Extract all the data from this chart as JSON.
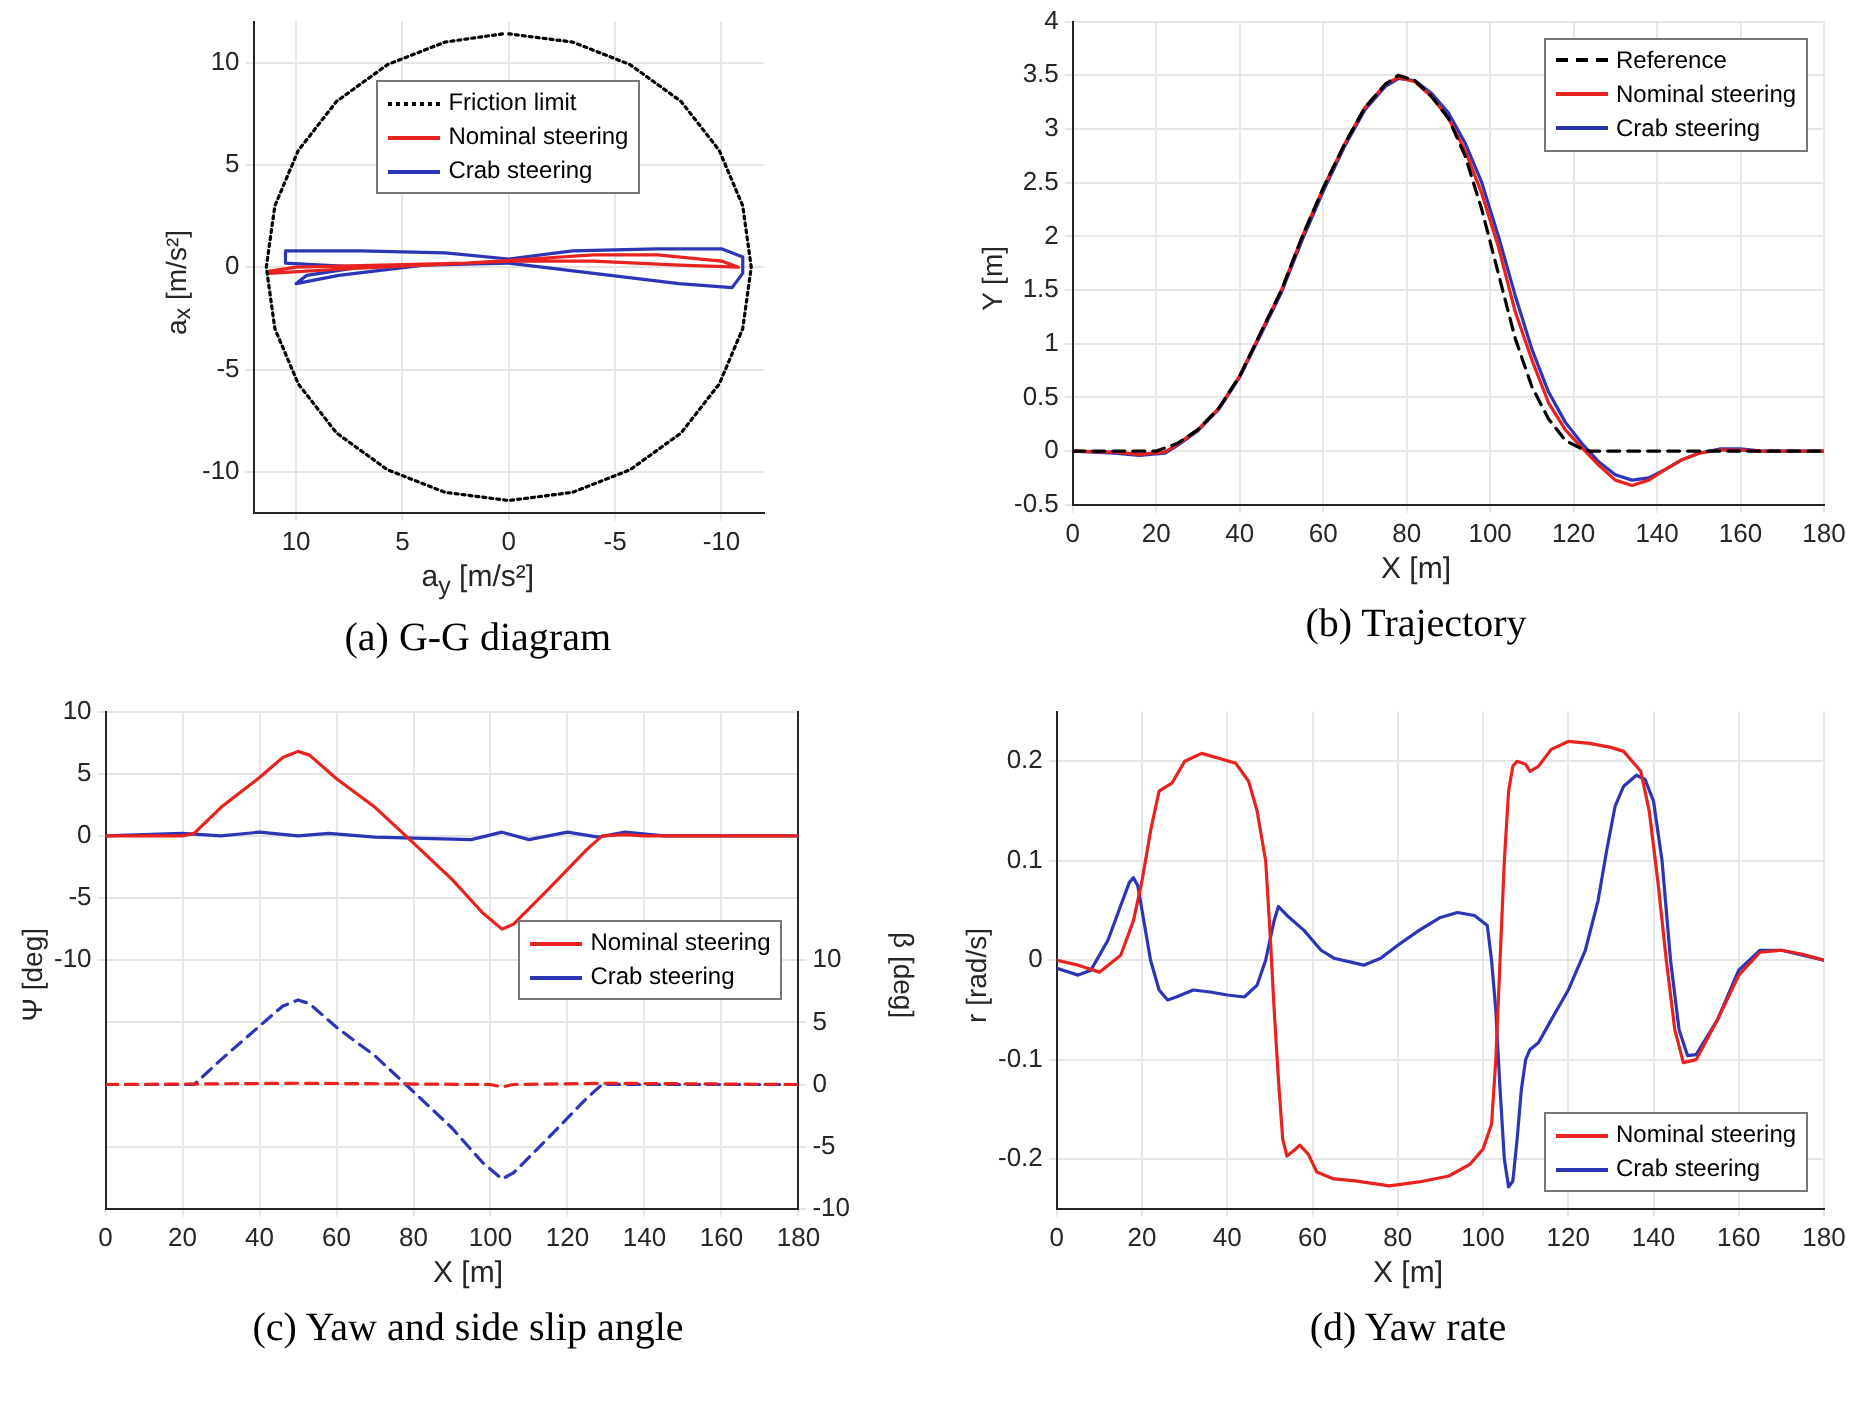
{
  "chart_data": [
    {
      "type": "line",
      "title": "(a) G-G diagram",
      "xlabel": "a$_{y}$ [m/s²]",
      "ylabel": "a$_{x}$ [m/s²]",
      "xlim": [
        12,
        -12
      ],
      "xticks": [
        10,
        5,
        0,
        -5,
        -10
      ],
      "ylim": [
        -12,
        12
      ],
      "yticks": [
        -10,
        -5,
        0,
        5,
        10
      ],
      "grid": true,
      "legend": "top",
      "marker": "none",
      "series": [
        {
          "name": "Friction limit",
          "color": "#000000",
          "line_style": "dotted",
          "x": [
            0.3,
            3,
            5.7,
            8.1,
            9.9,
            11,
            11.4,
            11,
            9.9,
            8.1,
            5.7,
            3,
            0,
            -3,
            -5.7,
            -8.1,
            -9.9,
            -11,
            -11.4,
            -11,
            -9.9,
            -8.1,
            -5.7,
            -3,
            0
          ],
          "values": [
            11.4,
            11,
            9.9,
            8.1,
            5.7,
            3,
            0,
            -3,
            -5.7,
            -8.1,
            -9.9,
            -11,
            -11.4,
            -11,
            -9.9,
            -8.1,
            -5.7,
            -3,
            0,
            3,
            5.7,
            8.1,
            9.9,
            11,
            11.4
          ]
        },
        {
          "name": "Nominal steering",
          "color": "#e8221e",
          "line_style": "solid",
          "x": [
            11.3,
            8,
            4,
            0,
            -4,
            -8,
            -10.8,
            -10,
            -7,
            -4,
            -1,
            2,
            6,
            10,
            11.3
          ],
          "values": [
            -0.3,
            -0.1,
            0.1,
            0.3,
            0.3,
            0.1,
            0,
            0.3,
            0.6,
            0.6,
            0.4,
            0.2,
            0.1,
            0,
            -0.2
          ]
        },
        {
          "name": "Crab steering",
          "color": "#2b35b5",
          "line_style": "solid",
          "x": [
            10.5,
            7,
            3,
            0,
            -3,
            -7,
            -10,
            -11,
            -11,
            -10.5,
            -8,
            -4,
            0,
            4,
            8,
            10,
            9.5,
            7,
            10.5,
            10.5
          ],
          "values": [
            0.8,
            0.8,
            0.7,
            0.4,
            0.8,
            0.9,
            0.9,
            0.5,
            -0.3,
            -1,
            -0.8,
            -0.3,
            0.2,
            0.1,
            -0.4,
            -0.8,
            -0.4,
            0,
            0.2,
            0.7
          ]
        }
      ]
    },
    {
      "type": "line",
      "title": "(b) Trajectory",
      "xlabel": "X [m]",
      "ylabel": "Y [m]",
      "xlim": [
        0,
        180
      ],
      "xticks": [
        0,
        20,
        40,
        60,
        80,
        100,
        120,
        140,
        160,
        180
      ],
      "ylim": [
        -0.5,
        4
      ],
      "yticks": [
        -0.5,
        0,
        0.5,
        1,
        1.5,
        2,
        2.5,
        3,
        3.5,
        4
      ],
      "grid": true,
      "legend": "top right",
      "marker": "none",
      "series": [
        {
          "name": "Reference",
          "color": "#000000",
          "line_style": "dashed",
          "x": [
            0,
            20,
            25,
            30,
            35,
            40,
            45,
            50,
            55,
            60,
            65,
            70,
            75,
            78,
            82,
            86,
            90,
            94,
            98,
            102,
            106,
            110,
            114,
            118,
            122,
            124,
            180
          ],
          "values": [
            0,
            0,
            0.07,
            0.2,
            0.4,
            0.7,
            1.1,
            1.5,
            2,
            2.45,
            2.85,
            3.2,
            3.42,
            3.5,
            3.45,
            3.3,
            3.1,
            2.75,
            2.25,
            1.65,
            1.05,
            0.6,
            0.3,
            0.1,
            0.02,
            0,
            0
          ]
        },
        {
          "name": "Nominal steering",
          "color": "#e8221e",
          "line_style": "solid",
          "x": [
            0,
            10,
            16,
            22,
            25,
            30,
            35,
            40,
            45,
            50,
            55,
            60,
            65,
            70,
            75,
            78,
            82,
            86,
            90,
            94,
            98,
            102,
            106,
            110,
            114,
            118,
            122,
            126,
            130,
            134,
            138,
            142,
            146,
            150,
            155,
            160,
            165,
            180
          ],
          "values": [
            0,
            -0.01,
            -0.03,
            -0.01,
            0.06,
            0.2,
            0.4,
            0.7,
            1.1,
            1.5,
            2,
            2.45,
            2.85,
            3.2,
            3.42,
            3.48,
            3.44,
            3.3,
            3.1,
            2.8,
            2.4,
            1.9,
            1.3,
            0.85,
            0.45,
            0.2,
            0.03,
            -0.13,
            -0.27,
            -0.32,
            -0.27,
            -0.17,
            -0.08,
            -0.02,
            0.01,
            0.01,
            0,
            0
          ]
        },
        {
          "name": "Crab steering",
          "color": "#2b35b5",
          "line_style": "solid",
          "x": [
            0,
            10,
            16,
            22,
            25,
            30,
            35,
            40,
            45,
            50,
            55,
            60,
            65,
            70,
            75,
            78,
            82,
            86,
            90,
            94,
            98,
            102,
            106,
            110,
            114,
            118,
            122,
            126,
            130,
            134,
            138,
            142,
            146,
            150,
            155,
            160,
            165,
            180
          ],
          "values": [
            0,
            -0.02,
            -0.04,
            -0.02,
            0.05,
            0.19,
            0.39,
            0.69,
            1.08,
            1.48,
            1.97,
            2.42,
            2.83,
            3.18,
            3.4,
            3.47,
            3.45,
            3.33,
            3.15,
            2.87,
            2.5,
            2,
            1.45,
            0.95,
            0.55,
            0.27,
            0.07,
            -0.1,
            -0.22,
            -0.27,
            -0.25,
            -0.17,
            -0.08,
            -0.02,
            0.02,
            0.02,
            0,
            0
          ]
        }
      ]
    },
    {
      "type": "line",
      "title": "(c) Yaw and side slip angle",
      "xlabel": "X [m]",
      "ylabel": "Ψ [deg]",
      "y2label": "β [deg]",
      "xlim": [
        0,
        180
      ],
      "xticks": [
        0,
        20,
        40,
        60,
        80,
        100,
        120,
        140,
        160,
        180
      ],
      "ylim": [
        -30,
        10
      ],
      "yticks": [
        -10,
        -5,
        0,
        5,
        10
      ],
      "y2lim": [
        -10,
        30
      ],
      "y2ticks": [
        -10,
        -5,
        0,
        5,
        10
      ],
      "grid": true,
      "legend": "right",
      "marker": "none",
      "series": [
        {
          "name": "Nominal steering",
          "color": "#e8221e",
          "line_style": "solid",
          "x": [
            0,
            20,
            23,
            30,
            40,
            46,
            50,
            53,
            60,
            70,
            78,
            90,
            98,
            103,
            106,
            115,
            125,
            129,
            135,
            140,
            180
          ],
          "values": [
            0,
            0,
            0.2,
            2.3,
            4.7,
            6.3,
            6.8,
            6.5,
            4.6,
            2.3,
            0,
            -3.5,
            -6.2,
            -7.5,
            -7.1,
            -4.3,
            -1.1,
            0,
            0.1,
            0,
            0
          ]
        },
        {
          "name": "Crab steering",
          "color": "#2b35b5",
          "line_style": "solid",
          "x": [
            0,
            20,
            30,
            40,
            50,
            58,
            70,
            95,
            103,
            110,
            120,
            128,
            135,
            145,
            180
          ],
          "values": [
            0,
            0.2,
            0,
            0.3,
            0,
            0.2,
            -0.1,
            -0.3,
            0.3,
            -0.3,
            0.3,
            -0.1,
            0.3,
            0,
            0
          ]
        },
        {
          "color": "#e8221e",
          "line_style": "dashed",
          "axis": "y2",
          "x": [
            0,
            50,
            100,
            103,
            106,
            130,
            180
          ],
          "values": [
            0,
            0.1,
            0,
            -0.2,
            0,
            0.1,
            0
          ]
        },
        {
          "color": "#2b35b5",
          "line_style": "dashed",
          "axis": "y2",
          "x": [
            0,
            23,
            30,
            40,
            46,
            50,
            53,
            60,
            70,
            78,
            90,
            98,
            103,
            106,
            115,
            125,
            129,
            180
          ],
          "values": [
            0,
            0,
            2,
            4.7,
            6.3,
            6.8,
            6.5,
            4.6,
            2.3,
            0,
            -3.5,
            -6.3,
            -7.6,
            -7.1,
            -4.3,
            -1.1,
            0,
            0
          ]
        }
      ]
    },
    {
      "type": "line",
      "title": "(d) Yaw rate",
      "xlabel": "X [m]",
      "ylabel": "r [rad/s]",
      "xlim": [
        0,
        180
      ],
      "xticks": [
        0,
        20,
        40,
        60,
        80,
        100,
        120,
        140,
        160,
        180
      ],
      "ylim": [
        -0.25,
        0.25
      ],
      "yticks": [
        -0.2,
        -0.1,
        0,
        0.1,
        0.2
      ],
      "grid": true,
      "legend": "bottom right",
      "marker": "none",
      "series": [
        {
          "name": "Nominal steering",
          "color": "#e8221e",
          "line_style": "solid",
          "x": [
            0,
            5,
            10,
            15,
            18,
            20,
            22,
            24,
            27,
            30,
            34,
            38,
            42,
            45,
            47,
            49,
            50,
            51,
            52,
            53,
            54,
            56,
            57,
            59,
            61,
            65,
            70,
            78,
            85,
            92,
            97,
            100,
            102,
            103,
            104,
            105,
            106,
            107,
            108,
            110,
            111,
            113,
            116,
            120,
            125,
            130,
            133,
            137,
            139,
            141,
            143,
            145,
            147,
            150,
            155,
            160,
            165,
            170,
            175,
            180
          ],
          "values": [
            0,
            -0.005,
            -0.012,
            0.005,
            0.04,
            0.08,
            0.13,
            0.17,
            0.178,
            0.2,
            0.208,
            0.203,
            0.198,
            0.18,
            0.15,
            0.1,
            0.03,
            -0.05,
            -0.12,
            -0.18,
            -0.197,
            -0.19,
            -0.186,
            -0.195,
            -0.213,
            -0.22,
            -0.222,
            -0.227,
            -0.223,
            -0.217,
            -0.205,
            -0.19,
            -0.165,
            -0.1,
            0,
            0.1,
            0.17,
            0.195,
            0.2,
            0.197,
            0.19,
            0.195,
            0.212,
            0.22,
            0.218,
            0.214,
            0.21,
            0.19,
            0.15,
            0.08,
            0,
            -0.07,
            -0.103,
            -0.1,
            -0.06,
            -0.015,
            0.008,
            0.01,
            0.006,
            0
          ]
        },
        {
          "name": "Crab steering",
          "color": "#2b35b5",
          "line_style": "solid",
          "x": [
            0,
            5,
            8,
            12,
            15,
            17,
            18,
            19,
            20,
            22,
            24,
            26,
            28,
            32,
            36,
            40,
            44,
            47,
            49,
            51,
            52,
            54,
            58,
            62,
            65,
            70,
            72,
            76,
            80,
            85,
            90,
            94,
            98,
            101,
            102,
            103,
            104,
            105,
            106,
            107,
            108,
            109,
            110,
            111,
            113,
            116,
            120,
            124,
            127,
            129,
            131,
            133,
            136,
            138,
            140,
            142,
            144,
            146,
            148,
            150,
            155,
            160,
            165,
            170,
            175,
            180
          ],
          "values": [
            -0.008,
            -0.015,
            -0.01,
            0.02,
            0.055,
            0.078,
            0.083,
            0.075,
            0.05,
            0,
            -0.03,
            -0.04,
            -0.037,
            -0.03,
            -0.032,
            -0.035,
            -0.037,
            -0.025,
            0,
            0.04,
            0.054,
            0.045,
            0.03,
            0.01,
            0.002,
            -0.003,
            -0.005,
            0.002,
            0.015,
            0.03,
            0.043,
            0.048,
            0.045,
            0.035,
            0,
            -0.05,
            -0.13,
            -0.2,
            -0.228,
            -0.222,
            -0.18,
            -0.13,
            -0.1,
            -0.09,
            -0.083,
            -0.06,
            -0.03,
            0.01,
            0.06,
            0.11,
            0.155,
            0.175,
            0.186,
            0.182,
            0.16,
            0.1,
            0,
            -0.07,
            -0.096,
            -0.095,
            -0.06,
            -0.01,
            0.01,
            0.01,
            0.005,
            0
          ]
        }
      ]
    }
  ]
}
